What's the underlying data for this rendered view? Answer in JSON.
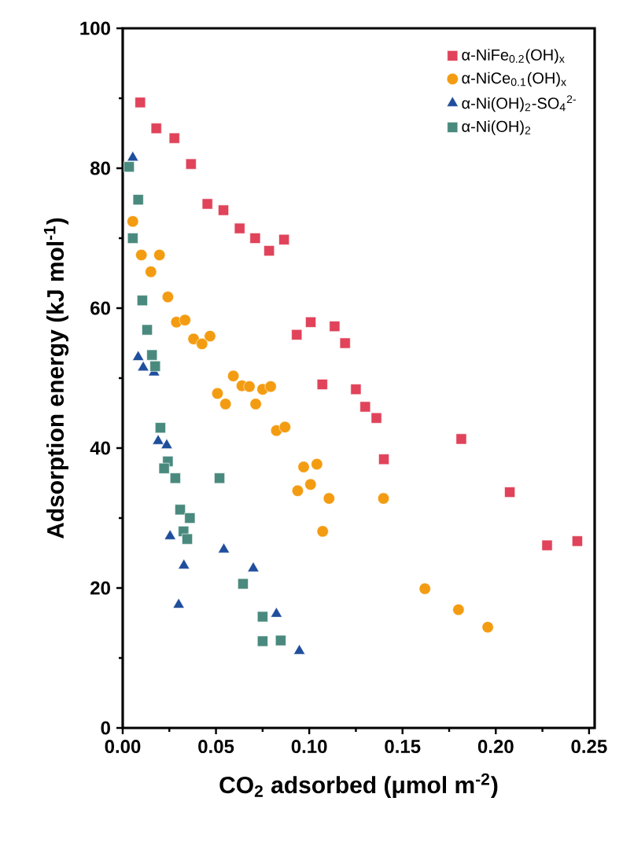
{
  "chart_data": {
    "type": "scatter",
    "xlabel": "CO$_{2}$ adsorbed (μmol m$^{-2}$)",
    "ylabel": "Adsorption energy (kJ mol$^{-1}$)",
    "xlim": [
      0,
      0.253
    ],
    "ylim": [
      0,
      100
    ],
    "xticks": [
      {
        "value": 0,
        "label": "0.00"
      },
      {
        "value": 0.05,
        "label": "0.05"
      },
      {
        "value": 0.1,
        "label": "0.10"
      },
      {
        "value": 0.15,
        "label": "0.15"
      },
      {
        "value": 0.2,
        "label": "0.20"
      },
      {
        "value": 0.25,
        "label": "0.25"
      }
    ],
    "yticks": [
      0,
      20,
      40,
      60,
      80,
      100
    ],
    "legend": "top right",
    "series": [
      {
        "name": "α-NiFe$_{0.2}$(OH)$_{x}$",
        "color": "#e0435a",
        "marker": "square",
        "x": [
          0.0094,
          0.018,
          0.0277,
          0.0366,
          0.0454,
          0.054,
          0.0627,
          0.071,
          0.0785,
          0.0865,
          0.0933,
          0.1008,
          0.1136,
          0.1192,
          0.107,
          0.125,
          0.13,
          0.136,
          0.14,
          0.1815,
          0.2075,
          0.2275,
          0.2437
        ],
        "values": [
          89.4,
          85.7,
          84.3,
          80.6,
          74.9,
          74,
          71.4,
          70,
          68.2,
          69.8,
          56.2,
          58,
          57.4,
          55,
          49.1,
          48.4,
          45.9,
          44.3,
          38.4,
          41.3,
          33.7,
          26.1,
          26.7
        ]
      },
      {
        "name": "α-NiCe$_{0.1}$(OH)$_{x}$",
        "color": "#f39c12",
        "marker": "circle",
        "x": [
          0.0054,
          0.01,
          0.0197,
          0.0151,
          0.0242,
          0.0288,
          0.0334,
          0.038,
          0.0425,
          0.0468,
          0.0593,
          0.0639,
          0.0679,
          0.0508,
          0.0551,
          0.075,
          0.0793,
          0.0713,
          0.0824,
          0.087,
          0.097,
          0.1041,
          0.0938,
          0.1007,
          0.1106,
          0.1072,
          0.1398,
          0.162,
          0.18,
          0.1957
        ],
        "values": [
          72.4,
          67.6,
          67.6,
          65.2,
          61.6,
          58,
          58.3,
          55.6,
          54.9,
          56,
          50.3,
          48.9,
          48.8,
          47.8,
          46.3,
          48.4,
          48.8,
          46.3,
          42.5,
          43,
          37.3,
          37.7,
          33.9,
          34.8,
          32.8,
          28.1,
          32.8,
          19.9,
          16.9,
          14.4
        ]
      },
      {
        "name": "α-Ni(OH)$_{2}$-SO$_{4}$$^{2-}$",
        "color": "#1f4e9c",
        "marker": "triangle",
        "x": [
          0.0054,
          0.0083,
          0.011,
          0.0168,
          0.019,
          0.0236,
          0.0254,
          0.0328,
          0.03,
          0.0542,
          0.07,
          0.0824,
          0.0947
        ],
        "values": [
          81.5,
          53,
          51.5,
          50.8,
          41,
          40.4,
          27.4,
          23.2,
          17.6,
          25.5,
          22.8,
          16.3,
          11
        ]
      },
      {
        "name": "α-Ni(OH)$_{2}$",
        "color": "#4a8a7e",
        "marker": "square",
        "x": [
          0.0034,
          0.0083,
          0.0054,
          0.0105,
          0.0131,
          0.0157,
          0.0174,
          0.0202,
          0.0242,
          0.0222,
          0.0282,
          0.0308,
          0.036,
          0.0326,
          0.0346,
          0.0519,
          0.0645,
          0.075,
          0.075,
          0.0847
        ],
        "values": [
          80.2,
          75.5,
          70,
          61.1,
          56.9,
          53.3,
          51.7,
          42.9,
          38.1,
          37.1,
          35.7,
          31.2,
          30,
          28.1,
          27,
          35.7,
          20.6,
          15.9,
          12.4,
          12.5
        ]
      }
    ]
  }
}
